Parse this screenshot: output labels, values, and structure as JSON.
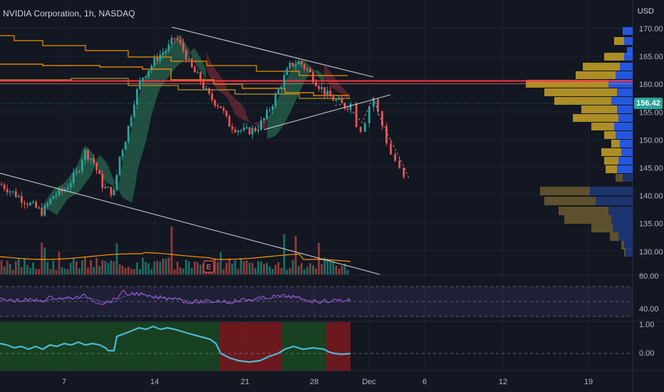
{
  "header": {
    "symbol_title": "NVIDIA Corporation, 1h, NASDAQ",
    "currency": "USD"
  },
  "current_price": "156.42",
  "earnings_marker": "E",
  "colors": {
    "background": "#131722",
    "up": "#26a69a",
    "down": "#ef5350",
    "resistance_line": "#f23645",
    "trendline": "#e0e3eb",
    "orange_line": "#ff9800",
    "rsi_line": "#9c27b0",
    "osc_line": "#4fb7d6"
  },
  "chart_data": {
    "type": "candlestick",
    "price_axis": [
      "170.00",
      "165.00",
      "160.00",
      "155.00",
      "150.00",
      "145.00",
      "140.00",
      "135.00",
      "130.00"
    ],
    "rsi_axis": [
      "80.00",
      "40.00"
    ],
    "osc_axis": [
      "1.00",
      "0.00"
    ],
    "time_axis": [
      "7",
      "14",
      "21",
      "28",
      "Dec",
      "6",
      "12",
      "19"
    ],
    "ylim": [
      128,
      172
    ],
    "resistance_level": 160.6,
    "last_price": 156.42
  }
}
